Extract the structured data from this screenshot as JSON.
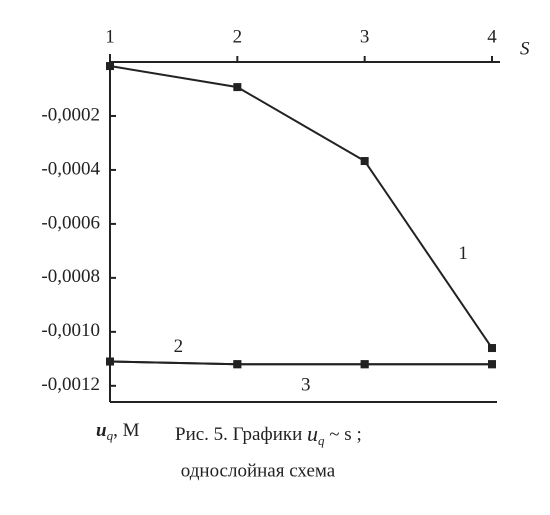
{
  "chart_data": {
    "type": "line",
    "x": [
      1,
      2,
      3,
      4
    ],
    "xlim": [
      1,
      4
    ],
    "xticks": [
      1,
      2,
      3,
      4
    ],
    "xlabel": "S",
    "ylim": [
      -0.00126,
      0
    ],
    "yticks": [
      {
        "value": -0.0002,
        "label": "-0,0002"
      },
      {
        "value": -0.0004,
        "label": "-0,0004"
      },
      {
        "value": -0.0006,
        "label": "-0,0006"
      },
      {
        "value": -0.0008,
        "label": "-0,0008"
      },
      {
        "value": -0.001,
        "label": "-0,0010"
      },
      {
        "value": -0.0012,
        "label": "-0,0012"
      }
    ],
    "ylabel": {
      "main": "u",
      "sub": "q",
      "unit": ", М"
    },
    "color": "#222222",
    "series": [
      {
        "name": "1",
        "values": [
          -1.5e-05,
          -9.3e-05,
          -0.000367,
          -0.00106
        ]
      },
      {
        "name": "2",
        "values": [
          -0.00111,
          -0.00112,
          -0.00112,
          -0.00112
        ]
      },
      {
        "name": "3",
        "values": [
          -0.00111,
          -0.00112,
          -0.00112,
          -0.00112
        ]
      }
    ],
    "caption": {
      "prefix": "Рис. 5. Графики ",
      "var": "u",
      "sub": "q",
      "suffix": " ~ s ;",
      "line2": "однослойная схема"
    }
  }
}
